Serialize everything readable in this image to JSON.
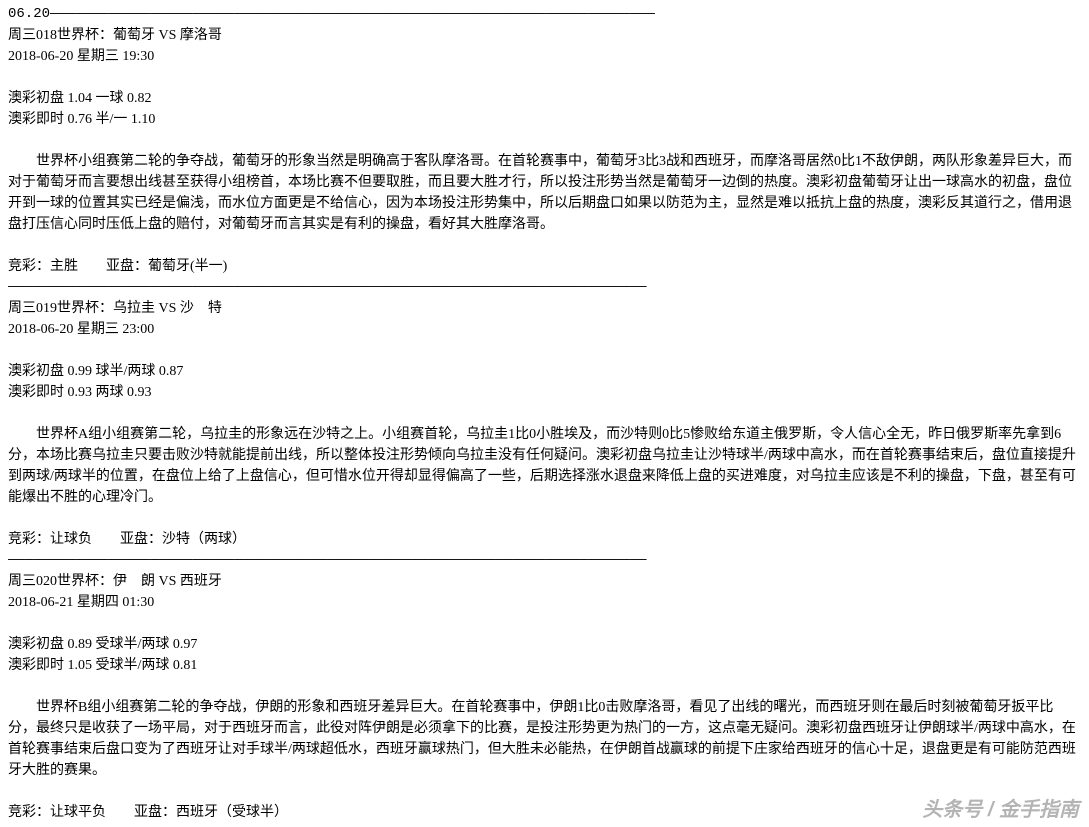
{
  "top_line": "06.20————————————————————————————————————————————————————————————————————————",
  "match1": {
    "header": "周三018世界杯：葡萄牙 VS 摩洛哥",
    "datetime": "2018-06-20 星期三 19:30",
    "odds1": "澳彩初盘 1.04 一球 0.82",
    "odds2": "澳彩即时 0.76 半/一 1.10",
    "analysis": "世界杯小组赛第二轮的争夺战，葡萄牙的形象当然是明确高于客队摩洛哥。在首轮赛事中，葡萄牙3比3战和西班牙，而摩洛哥居然0比1不敌伊朗，两队形象差异巨大，而对于葡萄牙而言要想出线甚至获得小组榜首，本场比赛不但要取胜，而且要大胜才行，所以投注形势当然是葡萄牙一边倒的热度。澳彩初盘葡萄牙让出一球高水的初盘，盘位开到一球的位置其实已经是偏浅，而水位方面更是不给信心，因为本场投注形势集中，所以后期盘口如果以防范为主，显然是难以抵抗上盘的热度，澳彩反其道行之，借用退盘打压信心同时压低上盘的赔付，对葡萄牙而言其实是有利的操盘，看好其大胜摩洛哥。",
    "pick": "竞彩：主胜　　亚盘：葡萄牙(半一)"
  },
  "divider": "————————————————————————————————————————————————————————————————————————————",
  "match2": {
    "header": "周三019世界杯：乌拉圭 VS 沙　特",
    "datetime": "2018-06-20 星期三 23:00",
    "odds1": "澳彩初盘 0.99 球半/两球 0.87",
    "odds2": "澳彩即时 0.93 两球 0.93",
    "analysis": "世界杯A组小组赛第二轮，乌拉圭的形象远在沙特之上。小组赛首轮，乌拉圭1比0小胜埃及，而沙特则0比5惨败给东道主俄罗斯，令人信心全无，昨日俄罗斯率先拿到6分，本场比赛乌拉圭只要击败沙特就能提前出线，所以整体投注形势倾向乌拉圭没有任何疑问。澳彩初盘乌拉圭让沙特球半/两球中高水，而在首轮赛事结束后，盘位直接提升到两球/两球半的位置，在盘位上给了上盘信心，但可惜水位开得却显得偏高了一些，后期选择涨水退盘来降低上盘的买进难度，对乌拉圭应该是不利的操盘，下盘，甚至有可能爆出不胜的心理冷门。",
    "pick": "竞彩：让球负　　亚盘：沙特（两球）"
  },
  "match3": {
    "header": "周三020世界杯：伊　朗 VS 西班牙",
    "datetime": "2018-06-21 星期四 01:30",
    "odds1": "澳彩初盘 0.89 受球半/两球 0.97",
    "odds2": "澳彩即时 1.05 受球半/两球 0.81",
    "analysis": "世界杯B组小组赛第二轮的争夺战，伊朗的形象和西班牙差异巨大。在首轮赛事中，伊朗1比0击败摩洛哥，看见了出线的曙光，而西班牙则在最后时刻被葡萄牙扳平比分，最终只是收获了一场平局，对于西班牙而言，此役对阵伊朗是必须拿下的比赛，是投注形势更为热门的一方，这点毫无疑问。澳彩初盘西班牙让伊朗球半/两球中高水，在首轮赛事结束后盘口变为了西班牙让对手球半/两球超低水，西班牙赢球热门，但大胜未必能热，在伊朗首战赢球的前提下庄家给西班牙的信心十足，退盘更是有可能防范西班牙大胜的赛果。",
    "pick": "竞彩：让球平负　　亚盘：西班牙（受球半）"
  },
  "watermark": "头条号 / 金手指南"
}
